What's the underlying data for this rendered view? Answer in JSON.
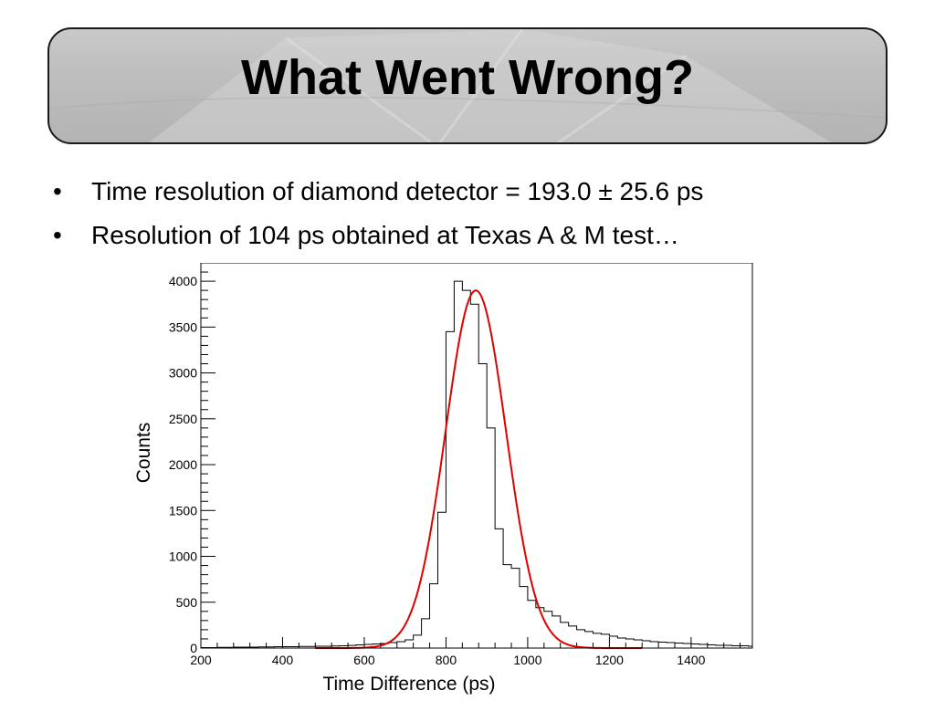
{
  "slide": {
    "title": "What Went Wrong?",
    "bullets": [
      "Time resolution of diamond detector = 193.0 ± 25.6 ps",
      "Resolution of 104 ps obtained at Texas A & M test…"
    ],
    "bullet_char": "•"
  },
  "chart_data": {
    "type": "line",
    "xlabel": "Time Difference (ps)",
    "ylabel": "Counts",
    "xlim": [
      200,
      1550
    ],
    "ylim": [
      0,
      4200
    ],
    "x_ticks": [
      200,
      400,
      600,
      800,
      1000,
      1200,
      1400
    ],
    "y_ticks": [
      0,
      500,
      1000,
      1500,
      2000,
      2500,
      3000,
      3500,
      4000
    ],
    "grid": false,
    "series": [
      {
        "kind": "histogram",
        "color": "#000000",
        "bin_width": 20,
        "bin_starts": [
          200,
          220,
          240,
          260,
          280,
          300,
          320,
          340,
          360,
          380,
          400,
          420,
          440,
          460,
          480,
          500,
          520,
          540,
          560,
          580,
          600,
          620,
          640,
          660,
          680,
          700,
          720,
          740,
          760,
          780,
          800,
          820,
          840,
          860,
          880,
          900,
          920,
          940,
          960,
          980,
          1000,
          1020,
          1040,
          1060,
          1080,
          1100,
          1120,
          1140,
          1160,
          1180,
          1200,
          1220,
          1240,
          1260,
          1280,
          1300,
          1320,
          1340,
          1360,
          1380,
          1400,
          1420,
          1440,
          1460,
          1480,
          1500,
          1520,
          1540
        ],
        "counts": [
          5,
          5,
          8,
          8,
          10,
          10,
          10,
          12,
          12,
          15,
          15,
          15,
          18,
          18,
          20,
          20,
          22,
          25,
          28,
          35,
          40,
          45,
          50,
          60,
          70,
          90,
          140,
          320,
          700,
          1480,
          3450,
          4000,
          3900,
          3750,
          3100,
          2400,
          1300,
          910,
          870,
          670,
          520,
          440,
          400,
          350,
          280,
          240,
          200,
          180,
          160,
          150,
          130,
          110,
          100,
          90,
          80,
          70,
          65,
          60,
          55,
          50,
          45,
          40,
          35,
          30,
          30,
          25,
          25,
          20
        ]
      },
      {
        "kind": "gaussian-fit",
        "color": "#e00000",
        "amplitude": 3900,
        "mean": 873,
        "sigma": 74,
        "x_range": [
          480,
          1280
        ]
      }
    ]
  }
}
